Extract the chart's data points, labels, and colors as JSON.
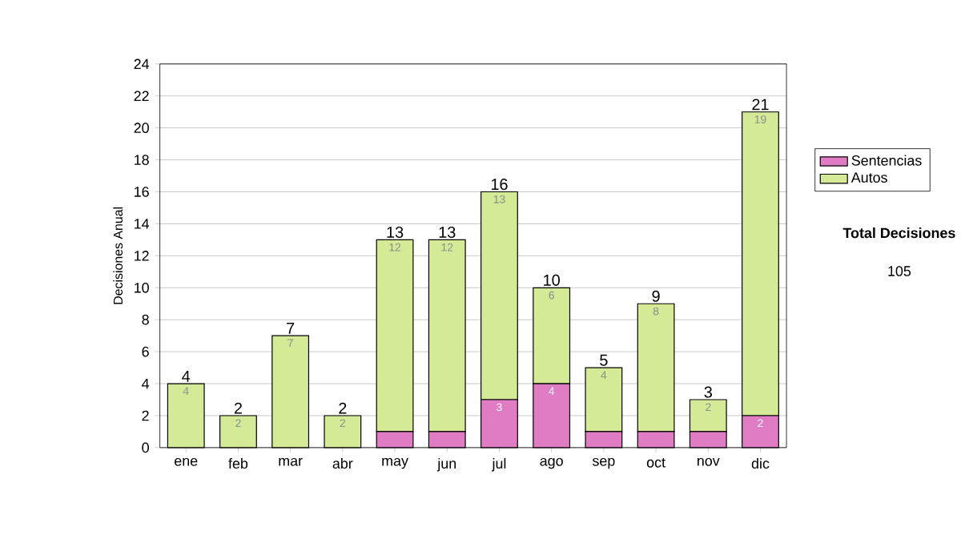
{
  "chart_data": {
    "type": "bar",
    "stacked": true,
    "ylabel": "Decisiones Anual",
    "categories": [
      "ene",
      "feb",
      "mar",
      "abr",
      "may",
      "jun",
      "jul",
      "ago",
      "sep",
      "oct",
      "nov",
      "dic"
    ],
    "series": [
      {
        "name": "Sentencias",
        "color": "#e07cc4",
        "values": [
          0,
          0,
          0,
          0,
          1,
          1,
          3,
          4,
          1,
          1,
          1,
          2
        ],
        "value_labels": [
          null,
          null,
          null,
          null,
          null,
          null,
          "3",
          "4",
          null,
          null,
          null,
          "2"
        ]
      },
      {
        "name": "Autos",
        "color": "#d4ea96",
        "values": [
          4,
          2,
          7,
          2,
          12,
          12,
          13,
          6,
          4,
          8,
          2,
          19
        ],
        "value_labels": [
          "4",
          "2",
          "7",
          "2",
          "12",
          "12",
          "13",
          "6",
          "4",
          "8",
          "2",
          "19"
        ]
      }
    ],
    "totals": [
      "4",
      "2",
      "7",
      "2",
      "13",
      "13",
      "16",
      "10",
      "5",
      "9",
      "3",
      "21"
    ],
    "ylim": [
      0,
      24
    ],
    "yticks": [
      0,
      2,
      4,
      6,
      8,
      10,
      12,
      14,
      16,
      18,
      20,
      22,
      24
    ],
    "grid": "y",
    "legend": "right",
    "annotations": [
      "Total Decisiones",
      "105"
    ]
  }
}
